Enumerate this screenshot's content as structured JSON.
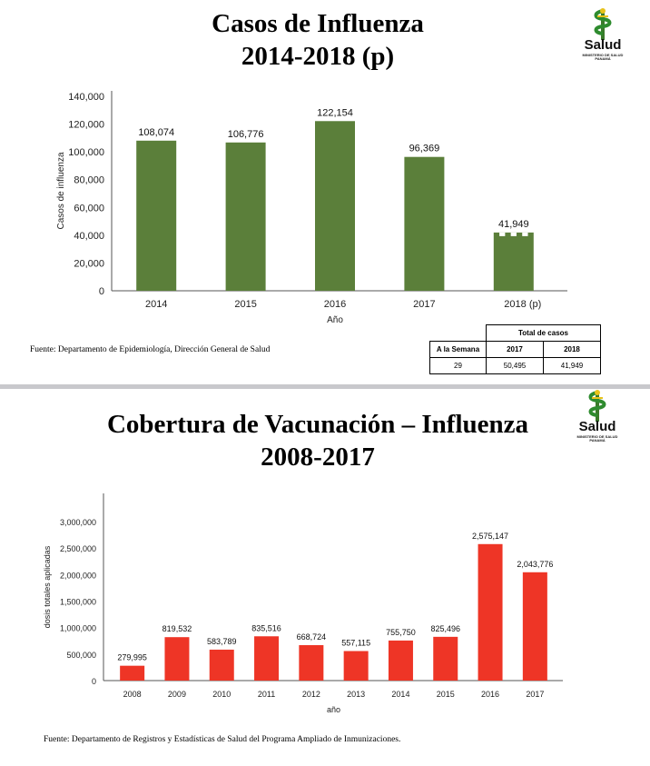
{
  "slide1": {
    "title_line1": "Casos de Influenza",
    "title_line2": "2014-2018 (p)",
    "logo_text": "Salud",
    "logo_subtext": "MINISTERIO DE SALUD PANAMÁ",
    "source": "Fuente: Departamento de Epidemiología, Dirección General de Salud",
    "table": {
      "group_header": "Total de casos",
      "row_header": "A la Semana",
      "col_2017": "2017",
      "col_2018": "2018",
      "week": "29",
      "value_2017": "50,495",
      "value_2018": "41,949"
    }
  },
  "slide2": {
    "title_line1": "Cobertura de Vacunación – Influenza",
    "title_line2": "2008-2017",
    "logo_text": "Salud",
    "logo_subtext": "MINISTERIO DE SALUD PANAMÁ",
    "source": "Fuente: Departamento de Registros y Estadísticas de Salud del Programa Ampliado de Inmunizaciones."
  },
  "colors": {
    "bar_green": "#5b7f3a",
    "bar_red": "#ee3526",
    "divider": "#c8c8cc"
  },
  "chart_data": [
    {
      "type": "bar",
      "title": "",
      "xlabel": "Año",
      "ylabel": "Casos de influenza",
      "categories": [
        "2014",
        "2015",
        "2016",
        "2017",
        "2018"
      ],
      "category_suffix": [
        "",
        "",
        "",
        "",
        "(p)"
      ],
      "values": [
        108074,
        106776,
        122154,
        96369,
        41949
      ],
      "labels": [
        "108,074",
        "106,776",
        "122,154",
        "96,369",
        "41,949"
      ],
      "partial_last_bar": true,
      "ylim": [
        0,
        140000
      ],
      "yticks": [
        0,
        20000,
        40000,
        60000,
        80000,
        100000,
        120000,
        140000
      ],
      "ytick_labels": [
        "0",
        "20,000",
        "40,000",
        "60,000",
        "80,000",
        "100,000",
        "120,000",
        "140,000"
      ],
      "grid": false,
      "color": "#5b7f3a"
    },
    {
      "type": "bar",
      "title": "",
      "xlabel": "año",
      "ylabel": "dosis totales aplicadas",
      "categories": [
        "2008",
        "2009",
        "2010",
        "2011",
        "2012",
        "2013",
        "2014",
        "2015",
        "2016",
        "2017"
      ],
      "values": [
        279995,
        819532,
        583789,
        835516,
        668724,
        557115,
        755750,
        825496,
        2575147,
        2043776
      ],
      "labels": [
        "279,995",
        "819,532",
        "583,789",
        "835,516",
        "668,724",
        "557,115",
        "755,750",
        "825,496",
        "2,575,147",
        "2,043,776"
      ],
      "ylim": [
        0,
        3000000
      ],
      "yticks": [
        0,
        500000,
        1000000,
        1500000,
        2000000,
        2500000,
        3000000
      ],
      "ytick_labels": [
        "0",
        "500,000",
        "1,000,000",
        "1,500,000",
        "2,000,000",
        "2,500,000",
        "3,000,000"
      ],
      "grid": false,
      "color": "#ee3526"
    }
  ]
}
